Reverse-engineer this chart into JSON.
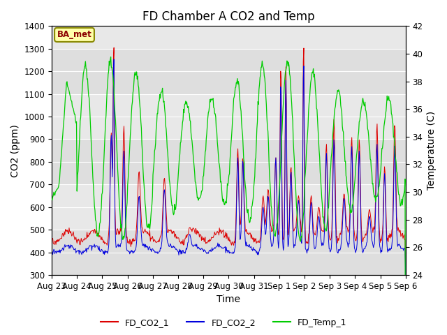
{
  "title": "FD Chamber A CO2 and Temp",
  "xlabel": "Time",
  "ylabel_left": "CO2 (ppm)",
  "ylabel_right": "Temperature (C)",
  "ylim_left": [
    300,
    1400
  ],
  "ylim_right": [
    24,
    42
  ],
  "annotation": "BA_met",
  "legend_labels": [
    "FD_CO2_1",
    "FD_CO2_2",
    "FD_Temp_1"
  ],
  "legend_colors": [
    "#dd0000",
    "#0000dd",
    "#00cc00"
  ],
  "xtick_labels": [
    "Aug 23",
    "Aug 24",
    "Aug 25",
    "Aug 26",
    "Aug 27",
    "Aug 28",
    "Aug 29",
    "Aug 30",
    "Aug 31",
    "Sep 1",
    "Sep 2",
    "Sep 3",
    "Sep 4",
    "Sep 5",
    "Sep 6"
  ],
  "grid_color": "#d0d0d0",
  "bg_color": "#e8e8e8",
  "band_color_light": "#f0f0f0",
  "band_color_dark": "#dcdcdc",
  "title_fontsize": 12,
  "axis_fontsize": 10,
  "tick_fontsize": 8.5
}
